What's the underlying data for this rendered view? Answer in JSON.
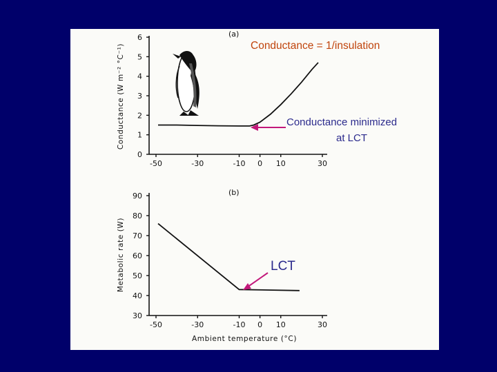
{
  "chart_data": [
    {
      "type": "line",
      "panel_label": "(a)",
      "title": "Conductance = 1/insulation",
      "xlabel": "",
      "ylabel": "Conductance (W m⁻² °C⁻¹)",
      "xlim": [
        -50,
        30
      ],
      "ylim": [
        0,
        6
      ],
      "x_ticks": [
        -50,
        -30,
        -10,
        0,
        10,
        30
      ],
      "y_ticks": [
        0,
        1,
        2,
        3,
        4,
        5,
        6
      ],
      "series": [
        {
          "x": [
            -49,
            -40,
            -30,
            -20,
            -10,
            -5,
            -3,
            0,
            5,
            10,
            15,
            20,
            25,
            28
          ],
          "y": [
            1.5,
            1.5,
            1.48,
            1.46,
            1.45,
            1.45,
            1.5,
            1.65,
            2.05,
            2.55,
            3.1,
            3.7,
            4.35,
            4.7
          ]
        }
      ],
      "annotation": {
        "text_line1": "Conductance minimized",
        "text_line2": "at LCT",
        "x": -5,
        "y": 1.45
      }
    },
    {
      "type": "line",
      "panel_label": "(b)",
      "title": "",
      "xlabel": "Ambient temperature (°C)",
      "ylabel": "Metabolic rate (W)",
      "xlim": [
        -50,
        30
      ],
      "ylim": [
        30,
        90
      ],
      "x_ticks": [
        -50,
        -30,
        -10,
        0,
        10,
        30
      ],
      "y_ticks": [
        30,
        40,
        50,
        60,
        70,
        80,
        90
      ],
      "series": [
        {
          "x": [
            -49,
            -10,
            19
          ],
          "y": [
            76,
            43,
            42.5
          ]
        }
      ],
      "annotation": {
        "text": "LCT",
        "x": -10,
        "y": 43
      }
    }
  ],
  "colors": {
    "background": "#00006a",
    "figure": "#fbfbf8",
    "title_note": "#c0440c",
    "annotation_text": "#2b2a8c",
    "arrow": "#c2187a"
  },
  "decoration": {
    "penguin": "penguin-illustration"
  }
}
